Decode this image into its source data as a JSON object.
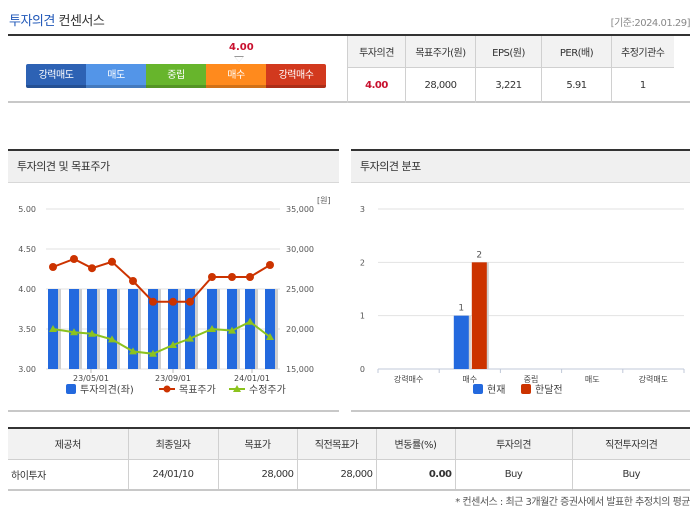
{
  "header": {
    "title": "투자의견",
    "title_sub": "컨센서스",
    "as_of": "[기준:2024.01.29]"
  },
  "gauge": {
    "value": "4.00",
    "segments": [
      {
        "label": "강력매도",
        "color": "#2d62b4"
      },
      {
        "label": "매도",
        "color": "#5395e8"
      },
      {
        "label": "중립",
        "color": "#67b52c"
      },
      {
        "label": "매수",
        "color": "#ff8a1d"
      },
      {
        "label": "강력매수",
        "color": "#d2391e"
      }
    ]
  },
  "summary": {
    "headers": [
      "투자의견",
      "목표주가(원)",
      "EPS(원)",
      "PER(배)",
      "추정기관수"
    ],
    "values": [
      "4.00",
      "28,000",
      "3,221",
      "5.91",
      "1"
    ]
  },
  "chart_left": {
    "title": "투자의견 및 목표주가",
    "unit": "[원]",
    "left_ticks": [
      "5.00",
      "4.50",
      "4.00",
      "3.50",
      "3.00"
    ],
    "right_ticks": [
      "35,000",
      "30,000",
      "25,000",
      "20,000",
      "15,000"
    ],
    "x_labels": [
      "23/05/01",
      "23/09/01",
      "24/01/01"
    ],
    "legend": [
      "투자의견(좌)",
      "목표주가",
      "수정주가"
    ]
  },
  "chart_right": {
    "title": "투자의견 분포",
    "y_ticks": [
      "3",
      "2",
      "1",
      "0"
    ],
    "categories": [
      "강력매수",
      "매수",
      "중립",
      "매도",
      "강력매도"
    ],
    "legend": [
      "현재",
      "한달전"
    ],
    "bar_labels": [
      "1",
      "2"
    ]
  },
  "chart_data": [
    {
      "type": "bar+line",
      "title": "투자의견 및 목표주가",
      "x_ticks": [
        "23/05/01",
        "23/09/01",
        "24/01/01"
      ],
      "ylim_left": [
        3.0,
        5.0
      ],
      "ylim_right": [
        15000,
        35000
      ],
      "y_unit_right": "원",
      "grid": true,
      "legend_position": "bottom",
      "series": [
        {
          "name": "투자의견(좌)",
          "type": "bar",
          "axis": "left",
          "color": "#2369de",
          "values": [
            4.0,
            4.0,
            4.0,
            4.0,
            4.0,
            4.0,
            4.0,
            4.0,
            4.0,
            4.0,
            4.0,
            4.0
          ]
        },
        {
          "name": "목표주가",
          "type": "line",
          "axis": "right",
          "color": "#cc3300",
          "values": [
            27750,
            28750,
            27600,
            28400,
            26000,
            23400,
            23400,
            23400,
            26500,
            26500,
            26500,
            28000
          ]
        },
        {
          "name": "수정주가",
          "type": "line",
          "axis": "right",
          "color": "#8cc31e",
          "values": [
            20000,
            19600,
            19400,
            18700,
            17200,
            16900,
            18000,
            18800,
            20000,
            19800,
            20900,
            19000
          ]
        }
      ]
    },
    {
      "type": "bar",
      "title": "투자의견 분포",
      "categories": [
        "강력매수",
        "매수",
        "중립",
        "매도",
        "강력매도"
      ],
      "ylim": [
        0,
        3
      ],
      "grid": true,
      "legend_position": "bottom",
      "series": [
        {
          "name": "현재",
          "color": "#2369de",
          "values": [
            0,
            1,
            0,
            0,
            0
          ]
        },
        {
          "name": "한달전",
          "color": "#cc3300",
          "values": [
            0,
            2,
            0,
            0,
            0
          ]
        }
      ]
    }
  ],
  "table": {
    "headers": [
      "제공처",
      "최종일자",
      "목표가",
      "직전목표가",
      "변동률(%)",
      "투자의견",
      "직전투자의견"
    ],
    "rows": [
      [
        "하이투자",
        "24/01/10",
        "28,000",
        "28,000",
        "0.00",
        "Buy",
        "Buy"
      ]
    ]
  },
  "footnote": "* 컨센서스 : 최근 3개월간 증권사에서 발표한 추정치의 평균"
}
